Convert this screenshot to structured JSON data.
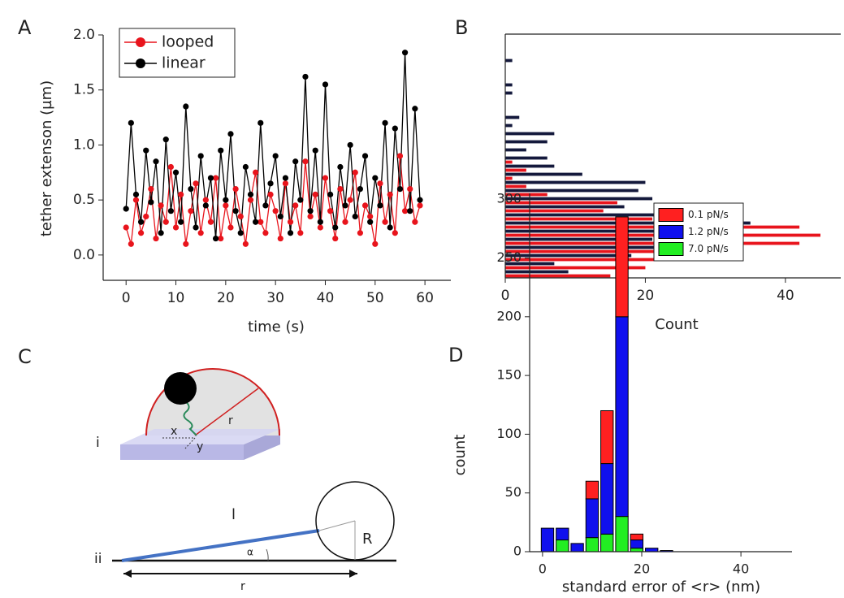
{
  "panel_labels": [
    "A",
    "B",
    "C",
    "D"
  ],
  "diagram": {
    "part_labels": [
      "i",
      "ii"
    ],
    "labels_i": [
      "x",
      "y",
      "r"
    ],
    "labels_ii": [
      "l",
      "R",
      "α",
      "r"
    ]
  },
  "chart_data": [
    {
      "type": "line",
      "xlabel": "time (s)",
      "ylabel": "tether extenson (µm)",
      "x": [
        0,
        1,
        2,
        3,
        4,
        5,
        6,
        7,
        8,
        9,
        10,
        11,
        12,
        13,
        14,
        15,
        16,
        17,
        18,
        19,
        20,
        21,
        22,
        23,
        24,
        25,
        26,
        27,
        28,
        29,
        30,
        31,
        32,
        33,
        34,
        35,
        36,
        37,
        38,
        39,
        40,
        41,
        42,
        43,
        44,
        45,
        46,
        47,
        48,
        49,
        50,
        51,
        52,
        53,
        54,
        55,
        56,
        57,
        58,
        59
      ],
      "series": [
        {
          "name": "looped",
          "color": "#e8141c",
          "values": [
            0.25,
            0.1,
            0.5,
            0.2,
            0.35,
            0.6,
            0.15,
            0.45,
            0.3,
            0.8,
            0.25,
            0.55,
            0.1,
            0.4,
            0.65,
            0.2,
            0.5,
            0.3,
            0.7,
            0.15,
            0.45,
            0.25,
            0.6,
            0.35,
            0.1,
            0.5,
            0.75,
            0.3,
            0.2,
            0.55,
            0.4,
            0.15,
            0.65,
            0.3,
            0.45,
            0.2,
            0.85,
            0.35,
            0.55,
            0.25,
            0.7,
            0.4,
            0.15,
            0.6,
            0.3,
            0.5,
            0.75,
            0.2,
            0.45,
            0.35,
            0.1,
            0.65,
            0.3,
            0.55,
            0.2,
            0.9,
            0.4,
            0.6,
            0.3,
            0.45
          ]
        },
        {
          "name": "linear",
          "color": "#000000",
          "values": [
            0.42,
            1.2,
            0.55,
            0.3,
            0.95,
            0.48,
            0.85,
            0.2,
            1.05,
            0.4,
            0.75,
            0.3,
            1.35,
            0.6,
            0.25,
            0.9,
            0.45,
            0.7,
            0.15,
            0.95,
            0.5,
            1.1,
            0.4,
            0.2,
            0.8,
            0.55,
            0.3,
            1.2,
            0.45,
            0.65,
            0.9,
            0.35,
            0.7,
            0.2,
            0.85,
            0.5,
            1.62,
            0.4,
            0.95,
            0.3,
            1.55,
            0.55,
            0.25,
            0.8,
            0.45,
            1.0,
            0.35,
            0.6,
            0.9,
            0.3,
            0.7,
            0.45,
            1.2,
            0.25,
            1.15,
            0.6,
            1.84,
            0.4,
            1.33,
            0.5
          ]
        }
      ],
      "xlim": [
        -4.6,
        65.2
      ],
      "xticks": [
        0,
        10,
        20,
        30,
        40,
        50,
        60
      ],
      "ylim": [
        -0.23,
        2.0
      ],
      "yticks": [
        {
          "value": 0,
          "label": "0.0"
        },
        {
          "value": 0.5,
          "label": "0.5"
        },
        {
          "value": 1,
          "label": "1.0"
        },
        {
          "value": 1.5,
          "label": "1.5"
        },
        {
          "value": 2,
          "label": "2.0"
        }
      ],
      "legend": "upper left"
    },
    {
      "type": "bar",
      "orientation": "horizontal",
      "xlabel": "Count",
      "categories": [
        null,
        null,
        null,
        null,
        null,
        null,
        null,
        null,
        null,
        null,
        null,
        null,
        null,
        null,
        null,
        null,
        null,
        null,
        null,
        null,
        null,
        null,
        null,
        null,
        null,
        null,
        null,
        null,
        null,
        null
      ],
      "series": [
        {
          "color": "#e8141c",
          "values": [
            15,
            20,
            34,
            33,
            42,
            45,
            42,
            21,
            14,
            16,
            6,
            3,
            1,
            3,
            1,
            0,
            0,
            0,
            0,
            0,
            0,
            0,
            0,
            0,
            0,
            0,
            0,
            0,
            0,
            0
          ]
        },
        {
          "color": "#14193c",
          "values": [
            9,
            7,
            18,
            30,
            21,
            26,
            35,
            27,
            17,
            21,
            19,
            20,
            11,
            7,
            6,
            3,
            6,
            7,
            1,
            2,
            0,
            0,
            1,
            1,
            0,
            0,
            1,
            0,
            0,
            0
          ]
        }
      ],
      "xlim": [
        0,
        47.9
      ],
      "xticks": [
        0,
        20,
        40
      ]
    },
    {
      "type": "histogram",
      "stacked": true,
      "xlabel": "standard error of <r> (nm)",
      "ylabel": "count",
      "bins": [
        -0.5,
        2.5,
        5.5,
        8.5,
        11.5,
        14.5,
        17.5,
        20.5,
        23.5,
        26.5
      ],
      "series": [
        {
          "name": "0.1  pN/s",
          "color": "#ff2020",
          "values": [
            0,
            0,
            0,
            15,
            45,
            85,
            5,
            0,
            0
          ]
        },
        {
          "name": "1.2  pN/s",
          "color": "#1010ee",
          "values": [
            20,
            10,
            7,
            33,
            60,
            170,
            7,
            3,
            1
          ]
        },
        {
          "name": "7.0  pN/s",
          "color": "#22ee22",
          "values": [
            0,
            10,
            0,
            12,
            15,
            30,
            3,
            0,
            0
          ]
        }
      ],
      "xlim": [
        -2.6,
        50.3
      ],
      "xticks": [
        0,
        20,
        40
      ],
      "ylim": [
        0,
        305
      ],
      "yticks": [
        0,
        50,
        100,
        150,
        200,
        250,
        300
      ],
      "legend": "upper right"
    }
  ]
}
